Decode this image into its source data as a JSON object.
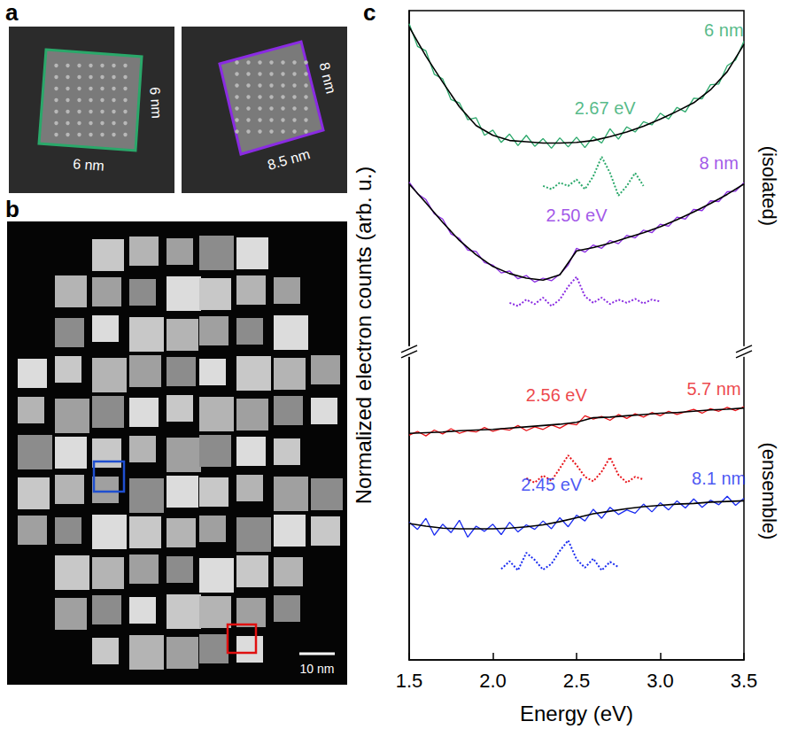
{
  "panels": {
    "a": {
      "label": "a",
      "images": [
        {
          "frame_color": "#2aa86a",
          "side_label": "6 nm",
          "bottom_label": "6 nm"
        },
        {
          "frame_color": "#8a2be2",
          "side_label": "8 nm",
          "bottom_label": "8.5 nm"
        }
      ]
    },
    "b": {
      "label": "b",
      "scale_bar": "10 nm",
      "boxes": [
        {
          "color": "#1f4fd0"
        },
        {
          "color": "#e01010"
        }
      ]
    }
  },
  "chart_data": {
    "type": "line",
    "panel_label": "c",
    "x_label": "Energy (eV)",
    "y_label": "Normalized electron counts (arb. u.)",
    "xlim": [
      1.5,
      3.5
    ],
    "xticks": [
      1.5,
      {
        "value": 2,
        "label": "2.0"
      },
      2.5,
      {
        "value": 3,
        "label": "3.0"
      },
      3.5
    ],
    "ylim": [
      0,
      100
    ],
    "tick_labels": "x",
    "grid": false,
    "y_break": 47.5,
    "group_labels": [
      {
        "text": "(isolated)",
        "y": 73
      },
      {
        "text": "(ensemble)",
        "y": 26
      }
    ],
    "fit_color": "#000000",
    "x": [
      1.5,
      1.55,
      1.6,
      1.65,
      1.7,
      1.75,
      1.8,
      1.85,
      1.9,
      1.95,
      2,
      2.05,
      2.1,
      2.15,
      2.2,
      2.25,
      2.3,
      2.35,
      2.4,
      2.45,
      2.5,
      2.55,
      2.6,
      2.65,
      2.7,
      2.75,
      2.8,
      2.85,
      2.9,
      2.95,
      3,
      3.05,
      3.1,
      3.15,
      3.2,
      3.25,
      3.3,
      3.35,
      3.4,
      3.45,
      3.5
    ],
    "fit_x": [
      1.5,
      1.6,
      1.7,
      1.8,
      1.9,
      2,
      2.1,
      2.2,
      2.3,
      2.4,
      2.5,
      2.6,
      2.7,
      2.8,
      2.9,
      3,
      3.1,
      3.2,
      3.3,
      3.4,
      3.5
    ],
    "series": [
      {
        "name": "6 nm",
        "color": "#2aa86a",
        "name_at": [
          3.38,
          97
        ],
        "peak_label": "2.67 eV",
        "peak_label_at": [
          2.67,
          85
        ],
        "values": [
          98,
          94.5,
          93.8,
          90.2,
          89.5,
          86.3,
          85.8,
          83.2,
          83.5,
          80.8,
          81.6,
          79.7,
          81,
          79.2,
          80.8,
          79.1,
          80.3,
          78.8,
          80.4,
          79,
          80.5,
          78.9,
          80.6,
          79.6,
          81.8,
          80.2,
          82.1,
          81.3,
          82.9,
          82.4,
          84.2,
          83.3,
          85.1,
          84.4,
          86.5,
          86.4,
          88.6,
          88.7,
          91.5,
          92.4,
          95.3
        ],
        "fit": [
          97.5,
          93,
          89,
          85.2,
          82.3,
          80.8,
          80,
          79.8,
          79.6,
          79.6,
          79.7,
          80,
          80.6,
          81.3,
          82.2,
          83.3,
          84.5,
          85.8,
          87.8,
          90.6,
          94.8
        ],
        "dotted": {
          "line_style": "dotted",
          "x": [
            2.3,
            2.35,
            2.4,
            2.45,
            2.5,
            2.55,
            2.6,
            2.65,
            2.7,
            2.75,
            2.8,
            2.85,
            2.9
          ],
          "values": [
            73,
            72.5,
            73.5,
            73,
            74,
            72.5,
            74.5,
            77.5,
            75,
            71.5,
            73,
            75,
            73
          ]
        }
      },
      {
        "name": "8 nm",
        "color": "#8a2be2",
        "name_at": [
          3.35,
          76.5
        ],
        "peak_label": "2.50 eV",
        "peak_label_at": [
          2.5,
          68.5
        ],
        "values": [
          73.6,
          71.8,
          70.9,
          68.7,
          67.9,
          65.6,
          64.9,
          63.1,
          62.9,
          61.2,
          60.8,
          59.6,
          59.9,
          58.7,
          59.2,
          58.2,
          58.8,
          58.4,
          59.4,
          60.8,
          63.4,
          62.8,
          63.9,
          63.4,
          64.6,
          64.1,
          65.4,
          65,
          66.2,
          65.8,
          67.1,
          66.8,
          68.2,
          67.9,
          69.4,
          69.2,
          70.7,
          70.6,
          72.1,
          72.2,
          73.5
        ],
        "fit": [
          73.3,
          70.4,
          67.4,
          64.6,
          62.4,
          60.6,
          59.5,
          58.8,
          58.5,
          59.3,
          63,
          63.5,
          64.2,
          65,
          65.8,
          66.7,
          67.8,
          69,
          70.3,
          71.7,
          73.3
        ],
        "dotted": {
          "line_style": "dotted",
          "x": [
            2.1,
            2.15,
            2.2,
            2.25,
            2.3,
            2.35,
            2.4,
            2.45,
            2.5,
            2.55,
            2.6,
            2.65,
            2.7,
            2.75,
            2.8,
            2.85,
            2.9,
            2.95,
            3
          ],
          "values": [
            55,
            54.5,
            55.5,
            54.8,
            55.8,
            54.5,
            55.5,
            57.5,
            59,
            56,
            55,
            55.8,
            54.8,
            55.5,
            55,
            55.6,
            54.9,
            55.5,
            55.2
          ]
        }
      },
      {
        "name": "5.7 nm",
        "color": "#e8141a",
        "name_at": [
          3.32,
          41.8
        ],
        "peak_label": "2.56 eV",
        "peak_label_at": [
          2.38,
          40.8
        ],
        "values": [
          34.6,
          35.2,
          34.5,
          35.4,
          34.8,
          35.6,
          34.9,
          35.3,
          35.1,
          35.8,
          35.2,
          35.6,
          35.4,
          36.1,
          35.3,
          35.9,
          35.5,
          36.2,
          35.7,
          36.4,
          36.2,
          37.6,
          37.1,
          37.5,
          36.9,
          37.8,
          37.2,
          37.9,
          37.4,
          38.1,
          37.6,
          38.3,
          37.8,
          38.2,
          38.6,
          38,
          38.7,
          38.3,
          38.9,
          38.4,
          39
        ],
        "fit": [
          34.9,
          35,
          35.1,
          35.3,
          35.4,
          35.5,
          35.7,
          35.9,
          36.1,
          36.3,
          36.6,
          37.3,
          37.4,
          37.6,
          37.8,
          38,
          38.1,
          38.3,
          38.5,
          38.6,
          38.8
        ],
        "dotted": {
          "line_style": "dotted",
          "x": [
            2.2,
            2.25,
            2.3,
            2.35,
            2.4,
            2.45,
            2.5,
            2.55,
            2.6,
            2.65,
            2.7,
            2.75,
            2.8,
            2.85,
            2.9
          ],
          "values": [
            28,
            27.3,
            28.4,
            27.6,
            29.5,
            31.5,
            30,
            28.2,
            27.5,
            29,
            31.2,
            28.5,
            27.3,
            28.2,
            27.8
          ]
        }
      },
      {
        "name": "8.1 nm",
        "color": "#1a2cf0",
        "name_at": [
          3.35,
          28
        ],
        "peak_label": "2.45 eV",
        "peak_label_at": [
          2.35,
          27
        ],
        "values": [
          21.2,
          20.1,
          21.8,
          19.2,
          20.9,
          19.6,
          21.5,
          18.9,
          20.6,
          19.8,
          20.9,
          19.3,
          21.2,
          19.7,
          20.8,
          20.1,
          21.4,
          20.2,
          21.9,
          20.5,
          22.3,
          21.4,
          23.2,
          21.8,
          23.5,
          22.4,
          23.1,
          22.6,
          24,
          22.8,
          24.2,
          23.1,
          24.5,
          23.4,
          24.8,
          23.5,
          24.6,
          23.9,
          25.2,
          23.8,
          24.9
        ],
        "fit": [
          21,
          20.6,
          20.3,
          20.2,
          20.2,
          20.2,
          20.3,
          20.5,
          20.8,
          21.3,
          21.9,
          22.5,
          22.9,
          23.3,
          23.6,
          23.8,
          24,
          24.1,
          24.3,
          24.4,
          24.5
        ],
        "dotted": {
          "line_style": "dotted",
          "x": [
            2.05,
            2.1,
            2.15,
            2.2,
            2.25,
            2.3,
            2.35,
            2.4,
            2.45,
            2.5,
            2.55,
            2.6,
            2.65,
            2.7,
            2.75
          ],
          "values": [
            14,
            15.2,
            13.8,
            16.5,
            15.4,
            13.9,
            14.8,
            16.8,
            18.4,
            15.5,
            14.2,
            15.6,
            13.8,
            15.1,
            14.3
          ]
        }
      }
    ]
  }
}
